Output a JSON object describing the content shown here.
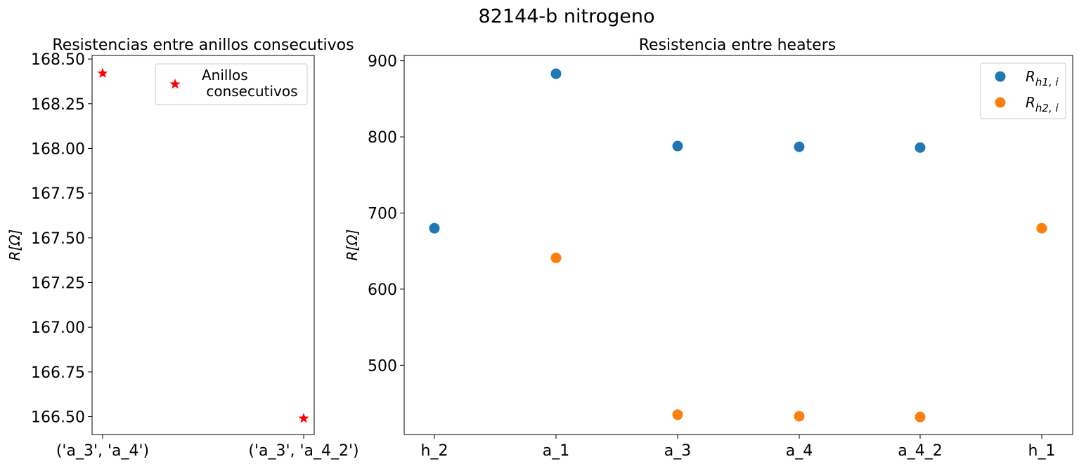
{
  "figure_title": "82144-b nitrogeno",
  "chart_data": [
    {
      "type": "scatter",
      "title": "Resistencias entre anillos consecutivos",
      "xlabel": "",
      "ylabel": "R[Ω]",
      "categories": [
        "('a_3', 'a_4')",
        "('a_3', 'a_4_2')"
      ],
      "series": [
        {
          "name": "Anillos\n consecutivos",
          "marker": "star",
          "color": "#ff0000",
          "values": [
            168.42,
            166.49
          ]
        }
      ],
      "ylim": [
        166.4,
        168.52
      ],
      "yticks": [
        166.5,
        166.75,
        167.0,
        167.25,
        167.5,
        167.75,
        168.0,
        168.25,
        168.5
      ],
      "ytick_labels": [
        "166.50",
        "166.75",
        "167.00",
        "167.25",
        "167.50",
        "167.75",
        "168.00",
        "168.25",
        "168.50"
      ],
      "grid": false,
      "legend": "top-right"
    },
    {
      "type": "scatter",
      "title": "Resistencia entre heaters",
      "xlabel": "",
      "ylabel": "R[Ω]",
      "categories": [
        "h_2",
        "a_1",
        "a_3",
        "a_4",
        "a_4_2",
        "h_1"
      ],
      "series": [
        {
          "name": "R_{h1, i}",
          "marker": "circle",
          "color": "#1f77b4",
          "values": [
            680,
            883,
            788,
            787,
            786,
            null
          ]
        },
        {
          "name": "R_{h2, i}",
          "marker": "circle",
          "color": "#ff7f0e",
          "values": [
            null,
            641,
            435,
            433,
            432,
            680
          ]
        }
      ],
      "ylim": [
        409,
        907
      ],
      "yticks": [
        500,
        600,
        700,
        800,
        900
      ],
      "ytick_labels": [
        "500",
        "600",
        "700",
        "800",
        "900"
      ],
      "grid": false,
      "legend": "top-right"
    }
  ]
}
